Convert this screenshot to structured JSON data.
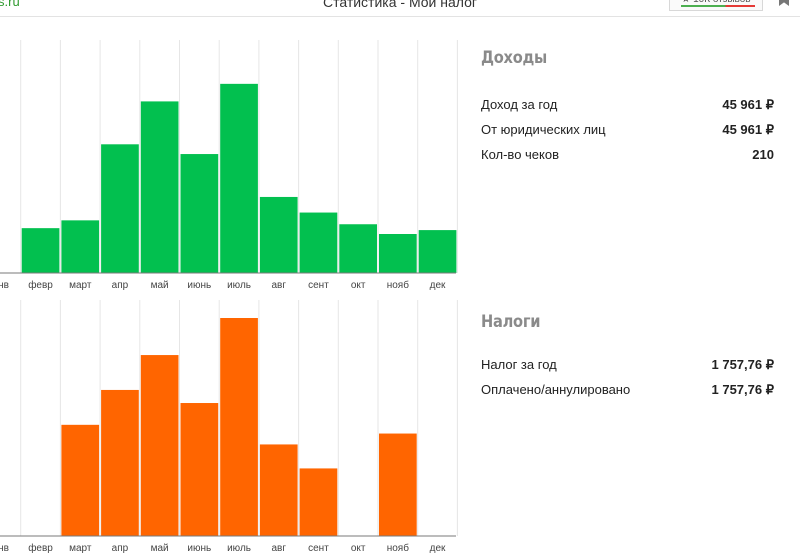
{
  "window": {
    "site": "s.ru",
    "title": "Статистика - Мой налог",
    "rating_badge": "★ 10К отзывов"
  },
  "income": {
    "heading": "Доходы",
    "rows": [
      {
        "label": "Доход за год",
        "value": "45 961 ₽"
      },
      {
        "label": "От юридических лиц",
        "value": "45 961 ₽"
      },
      {
        "label": "Кол-во чеков",
        "value": "210"
      }
    ]
  },
  "taxes": {
    "heading": "Налоги",
    "rows": [
      {
        "label": "Налог за год",
        "value": "1 757,76 ₽"
      },
      {
        "label": "Оплачено/аннулировано",
        "value": "1 757,76 ₽"
      }
    ]
  },
  "colors": {
    "income": "#02c04f",
    "taxes": "#ff6500",
    "grid": "#e6e6e6"
  },
  "chart_data": [
    {
      "type": "bar",
      "categories": [
        "янв",
        "февр",
        "март",
        "апр",
        "май",
        "июнь",
        "июль",
        "авг",
        "сент",
        "окт",
        "нояб",
        "дек"
      ],
      "values": [
        0,
        23,
        27,
        66,
        88,
        61,
        97,
        39,
        31,
        25,
        20,
        22
      ],
      "ylim": [
        0,
        100
      ]
    },
    {
      "type": "bar",
      "categories": [
        "янв",
        "февр",
        "март",
        "апр",
        "май",
        "июнь",
        "июль",
        "авг",
        "сент",
        "окт",
        "нояб",
        "дек"
      ],
      "values": [
        0,
        0,
        51,
        67,
        83,
        61,
        100,
        42,
        31,
        0,
        47,
        0
      ],
      "ylim": [
        0,
        100
      ]
    }
  ]
}
